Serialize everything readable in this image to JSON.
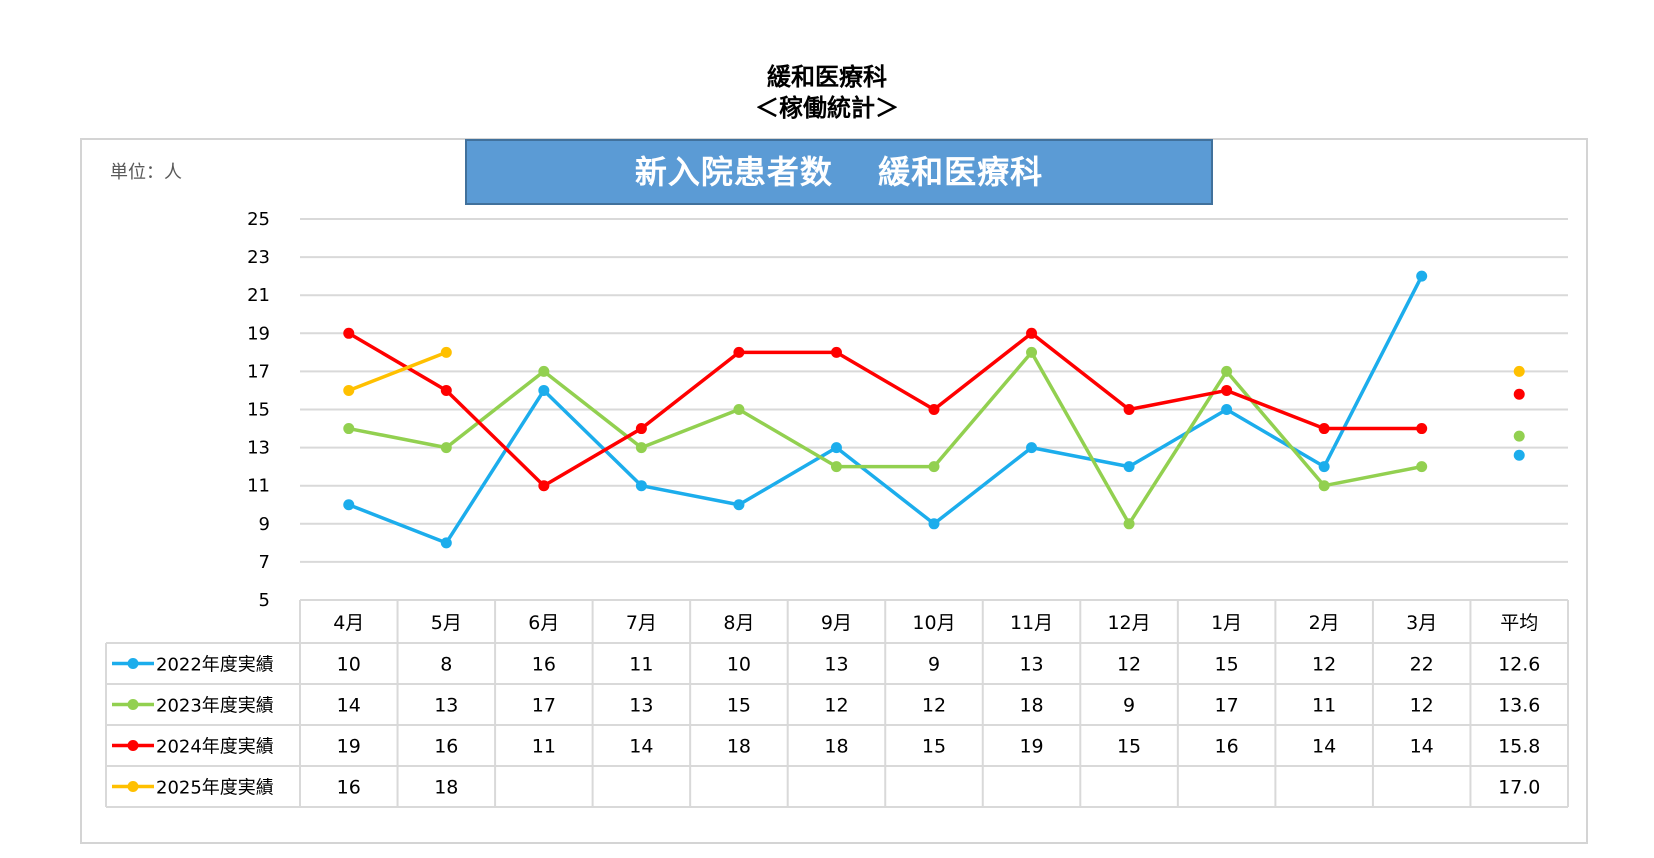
{
  "header": {
    "title_line1": "緩和医療科",
    "title_line2": "＜稼働統計＞"
  },
  "unit_label": "単位：人",
  "chart_data": {
    "type": "line",
    "title": "新入院患者数　 緩和医療科",
    "categories": [
      "4月",
      "5月",
      "6月",
      "7月",
      "8月",
      "9月",
      "10月",
      "11月",
      "12月",
      "1月",
      "2月",
      "3月"
    ],
    "average_label": "平均",
    "ylim": [
      5,
      25
    ],
    "yticks": [
      5,
      7,
      9,
      11,
      13,
      15,
      17,
      19,
      21,
      23,
      25
    ],
    "grid": true,
    "series": [
      {
        "name": "2022年度実績",
        "color": "#1cadec",
        "values": [
          10,
          8,
          16,
          11,
          10,
          13,
          9,
          13,
          12,
          15,
          12,
          22
        ],
        "average": "12.6"
      },
      {
        "name": "2023年度実績",
        "color": "#92d050",
        "values": [
          14,
          13,
          17,
          13,
          15,
          12,
          12,
          18,
          9,
          17,
          11,
          12
        ],
        "average": "13.6"
      },
      {
        "name": "2024年度実績",
        "color": "#ff0000",
        "values": [
          19,
          16,
          11,
          14,
          18,
          18,
          15,
          19,
          15,
          16,
          14,
          14
        ],
        "average": "15.8"
      },
      {
        "name": "2025年度実績",
        "color": "#ffc000",
        "values": [
          16,
          18,
          null,
          null,
          null,
          null,
          null,
          null,
          null,
          null,
          null,
          null
        ],
        "average": "17.0"
      }
    ]
  }
}
